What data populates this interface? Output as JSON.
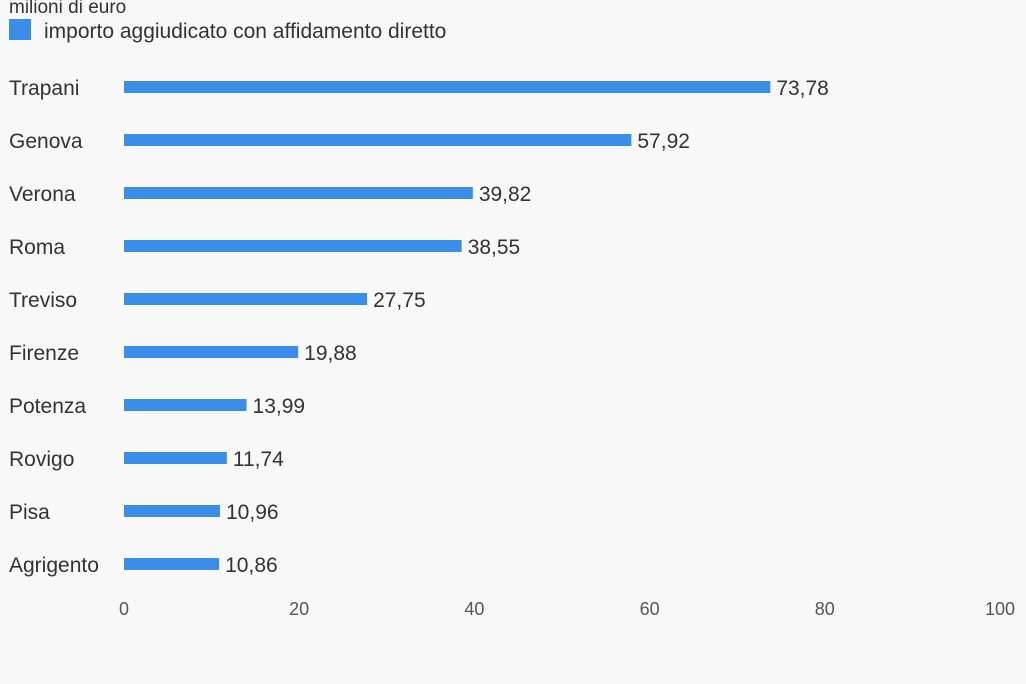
{
  "chart_data": {
    "type": "bar",
    "orientation": "horizontal",
    "unit_label": "milioni di euro",
    "legend_position": "top-left",
    "series": [
      {
        "name": "importo aggiudicato con affidamento diretto",
        "color": "#3a8ee8",
        "values": [
          73.78,
          57.92,
          39.82,
          38.55,
          27.75,
          19.88,
          13.99,
          11.74,
          10.96,
          10.86
        ]
      }
    ],
    "categories": [
      "Trapani",
      "Genova",
      "Verona",
      "Roma",
      "Treviso",
      "Firenze",
      "Potenza",
      "Rovigo",
      "Pisa",
      "Agrigento"
    ],
    "value_labels": [
      "73,78",
      "57,92",
      "39,82",
      "38,55",
      "27,75",
      "19,88",
      "13,99",
      "11,74",
      "10,96",
      "10,86"
    ],
    "xlim": [
      0,
      100
    ],
    "x_ticks": [
      0,
      20,
      40,
      60,
      80,
      100
    ],
    "x_tick_labels": [
      "0",
      "20",
      "40",
      "60",
      "80",
      "100"
    ],
    "grid": false
  }
}
